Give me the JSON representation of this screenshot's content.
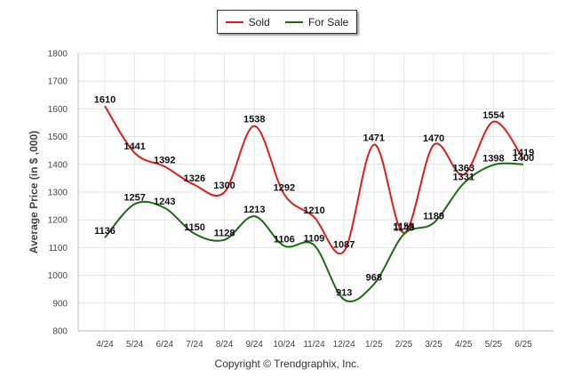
{
  "chart_data": {
    "type": "line",
    "title": "",
    "xlabel": "",
    "ylabel": "Average Price (in $ ,000)",
    "ylim": [
      800,
      1800
    ],
    "yticks": [
      800,
      900,
      1000,
      1100,
      1200,
      1300,
      1400,
      1500,
      1600,
      1700,
      1800
    ],
    "grid": true,
    "legend_position": "top-center",
    "categories": [
      "4/24",
      "5/24",
      "6/24",
      "7/24",
      "8/24",
      "9/24",
      "10/24",
      "11/24",
      "12/24",
      "1/25",
      "2/25",
      "3/25",
      "4/25",
      "5/25",
      "6/25"
    ],
    "series": [
      {
        "name": "Sold",
        "color": "#e31b1b",
        "values": [
          1610,
          1441,
          1392,
          1326,
          1300,
          1538,
          1292,
          1210,
          1087,
          1471,
          1153,
          1470,
          1363,
          1554,
          1419
        ]
      },
      {
        "name": "For Sale",
        "color": "#1a6b12",
        "values": [
          1136,
          1257,
          1243,
          1150,
          1128,
          1213,
          1106,
          1109,
          913,
          968,
          1148,
          1189,
          1331,
          1398,
          1400
        ]
      }
    ]
  },
  "footer": {
    "copyright": "Copyright © Trendgraphix, Inc."
  }
}
